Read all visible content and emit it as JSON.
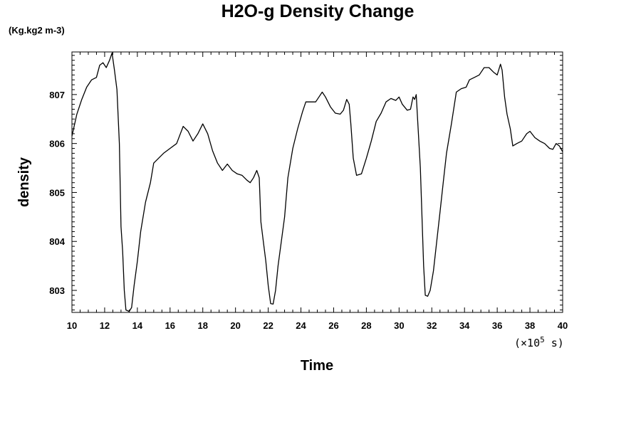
{
  "chart_data": {
    "type": "line",
    "title": "H2O-g Density Change",
    "units_label": "(Kg.kg2 m-3)",
    "xlabel": "Time",
    "ylabel": "density",
    "x_scale_label": "(×10",
    "x_scale_exp": "5",
    "x_scale_unit": " s)",
    "xlim": [
      10,
      40
    ],
    "ylim": [
      802.55,
      807.87
    ],
    "x_ticks": [
      "10",
      "12",
      "14",
      "16",
      "18",
      "20",
      "22",
      "24",
      "26",
      "28",
      "30",
      "32",
      "34",
      "36",
      "38",
      "40"
    ],
    "y_ticks": [
      "803",
      "804",
      "805",
      "806",
      "807"
    ],
    "grid": false,
    "series": [
      {
        "color": "#000000",
        "points": [
          [
            10.0,
            806.15
          ],
          [
            10.3,
            806.6
          ],
          [
            10.6,
            806.9
          ],
          [
            10.9,
            807.15
          ],
          [
            11.2,
            807.3
          ],
          [
            11.5,
            807.35
          ],
          [
            11.7,
            807.6
          ],
          [
            11.9,
            807.65
          ],
          [
            12.1,
            807.55
          ],
          [
            12.3,
            807.7
          ],
          [
            12.45,
            807.85
          ],
          [
            12.6,
            807.5
          ],
          [
            12.75,
            807.1
          ],
          [
            12.9,
            806.0
          ],
          [
            13.0,
            804.3
          ],
          [
            13.1,
            803.8
          ],
          [
            13.2,
            803.0
          ],
          [
            13.3,
            802.6
          ],
          [
            13.5,
            802.57
          ],
          [
            13.65,
            802.65
          ],
          [
            13.8,
            803.1
          ],
          [
            14.0,
            803.6
          ],
          [
            14.2,
            804.2
          ],
          [
            14.5,
            804.8
          ],
          [
            14.8,
            805.2
          ],
          [
            15.0,
            805.6
          ],
          [
            15.3,
            805.7
          ],
          [
            15.6,
            805.8
          ],
          [
            16.0,
            805.9
          ],
          [
            16.4,
            806.0
          ],
          [
            16.8,
            806.35
          ],
          [
            17.1,
            806.25
          ],
          [
            17.4,
            806.05
          ],
          [
            17.7,
            806.2
          ],
          [
            18.0,
            806.4
          ],
          [
            18.3,
            806.2
          ],
          [
            18.6,
            805.85
          ],
          [
            18.9,
            805.6
          ],
          [
            19.2,
            805.45
          ],
          [
            19.5,
            805.58
          ],
          [
            19.8,
            805.45
          ],
          [
            20.1,
            805.38
          ],
          [
            20.4,
            805.35
          ],
          [
            20.7,
            805.25
          ],
          [
            20.9,
            805.2
          ],
          [
            21.1,
            805.3
          ],
          [
            21.3,
            805.45
          ],
          [
            21.45,
            805.3
          ],
          [
            21.55,
            804.4
          ],
          [
            21.7,
            804.0
          ],
          [
            21.85,
            803.6
          ],
          [
            22.0,
            803.1
          ],
          [
            22.15,
            802.73
          ],
          [
            22.3,
            802.72
          ],
          [
            22.45,
            803.0
          ],
          [
            22.6,
            803.5
          ],
          [
            22.8,
            804.0
          ],
          [
            23.0,
            804.5
          ],
          [
            23.2,
            805.3
          ],
          [
            23.5,
            805.9
          ],
          [
            23.8,
            806.3
          ],
          [
            24.1,
            806.65
          ],
          [
            24.3,
            806.85
          ],
          [
            24.6,
            806.85
          ],
          [
            24.9,
            806.85
          ],
          [
            25.1,
            806.95
          ],
          [
            25.3,
            807.05
          ],
          [
            25.5,
            806.95
          ],
          [
            25.8,
            806.75
          ],
          [
            26.1,
            806.62
          ],
          [
            26.4,
            806.6
          ],
          [
            26.6,
            806.68
          ],
          [
            26.8,
            806.9
          ],
          [
            26.95,
            806.8
          ],
          [
            27.05,
            806.4
          ],
          [
            27.2,
            805.7
          ],
          [
            27.4,
            805.35
          ],
          [
            27.7,
            805.38
          ],
          [
            28.0,
            805.7
          ],
          [
            28.3,
            806.05
          ],
          [
            28.6,
            806.45
          ],
          [
            28.9,
            806.62
          ],
          [
            29.2,
            806.85
          ],
          [
            29.5,
            806.92
          ],
          [
            29.8,
            806.88
          ],
          [
            30.0,
            806.95
          ],
          [
            30.2,
            806.8
          ],
          [
            30.5,
            806.68
          ],
          [
            30.7,
            806.7
          ],
          [
            30.85,
            806.95
          ],
          [
            30.95,
            806.9
          ],
          [
            31.05,
            807.0
          ],
          [
            31.15,
            806.4
          ],
          [
            31.3,
            805.5
          ],
          [
            31.4,
            804.5
          ],
          [
            31.5,
            803.5
          ],
          [
            31.6,
            802.9
          ],
          [
            31.75,
            802.88
          ],
          [
            31.9,
            803.0
          ],
          [
            32.1,
            803.4
          ],
          [
            32.3,
            804.0
          ],
          [
            32.5,
            804.6
          ],
          [
            32.7,
            805.2
          ],
          [
            32.9,
            805.8
          ],
          [
            33.2,
            806.4
          ],
          [
            33.5,
            807.05
          ],
          [
            33.8,
            807.12
          ],
          [
            34.1,
            807.15
          ],
          [
            34.3,
            807.3
          ],
          [
            34.6,
            807.35
          ],
          [
            34.9,
            807.4
          ],
          [
            35.2,
            807.55
          ],
          [
            35.5,
            807.55
          ],
          [
            35.8,
            807.45
          ],
          [
            36.0,
            807.4
          ],
          [
            36.2,
            807.62
          ],
          [
            36.3,
            807.5
          ],
          [
            36.45,
            806.95
          ],
          [
            36.6,
            806.6
          ],
          [
            36.8,
            806.3
          ],
          [
            36.95,
            805.95
          ],
          [
            37.2,
            806.0
          ],
          [
            37.5,
            806.05
          ],
          [
            37.8,
            806.2
          ],
          [
            38.0,
            806.25
          ],
          [
            38.3,
            806.12
          ],
          [
            38.6,
            806.05
          ],
          [
            38.9,
            806.0
          ],
          [
            39.2,
            805.9
          ],
          [
            39.4,
            805.88
          ],
          [
            39.6,
            806.0
          ],
          [
            39.8,
            805.95
          ],
          [
            40.0,
            805.83
          ]
        ]
      }
    ]
  }
}
